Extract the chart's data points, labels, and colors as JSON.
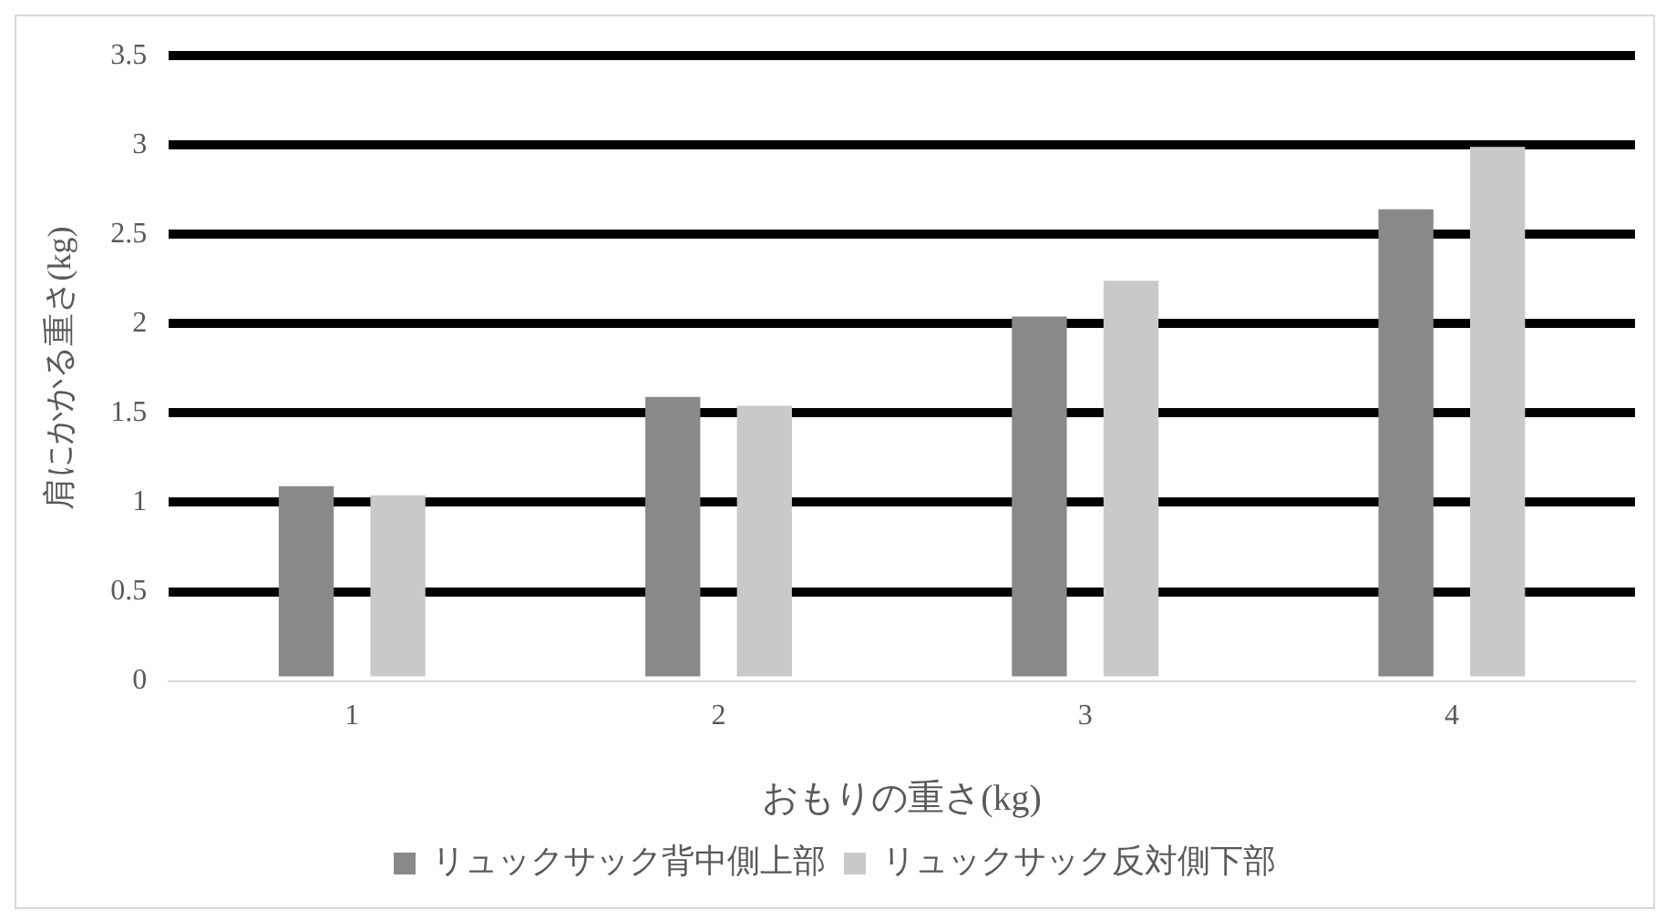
{
  "chart_data": {
    "type": "bar",
    "xlabel": "おもりの重さ(kg)",
    "ylabel": "肩にかかる重さ(kg)",
    "categories": [
      "1",
      "2",
      "3",
      "4"
    ],
    "series": [
      {
        "name": "リュックサック背中側上部",
        "color": "#898989",
        "values": [
          1.09,
          1.59,
          2.04,
          2.64
        ]
      },
      {
        "name": "リュックサック反対側下部",
        "color": "#c9c9c9",
        "values": [
          1.04,
          1.54,
          2.24,
          2.99
        ]
      }
    ],
    "ylim": [
      0,
      3.5
    ],
    "yticks": [
      0,
      0.5,
      1,
      1.5,
      2,
      2.5,
      3,
      3.5
    ],
    "grid": "y",
    "legend": "bottom"
  }
}
